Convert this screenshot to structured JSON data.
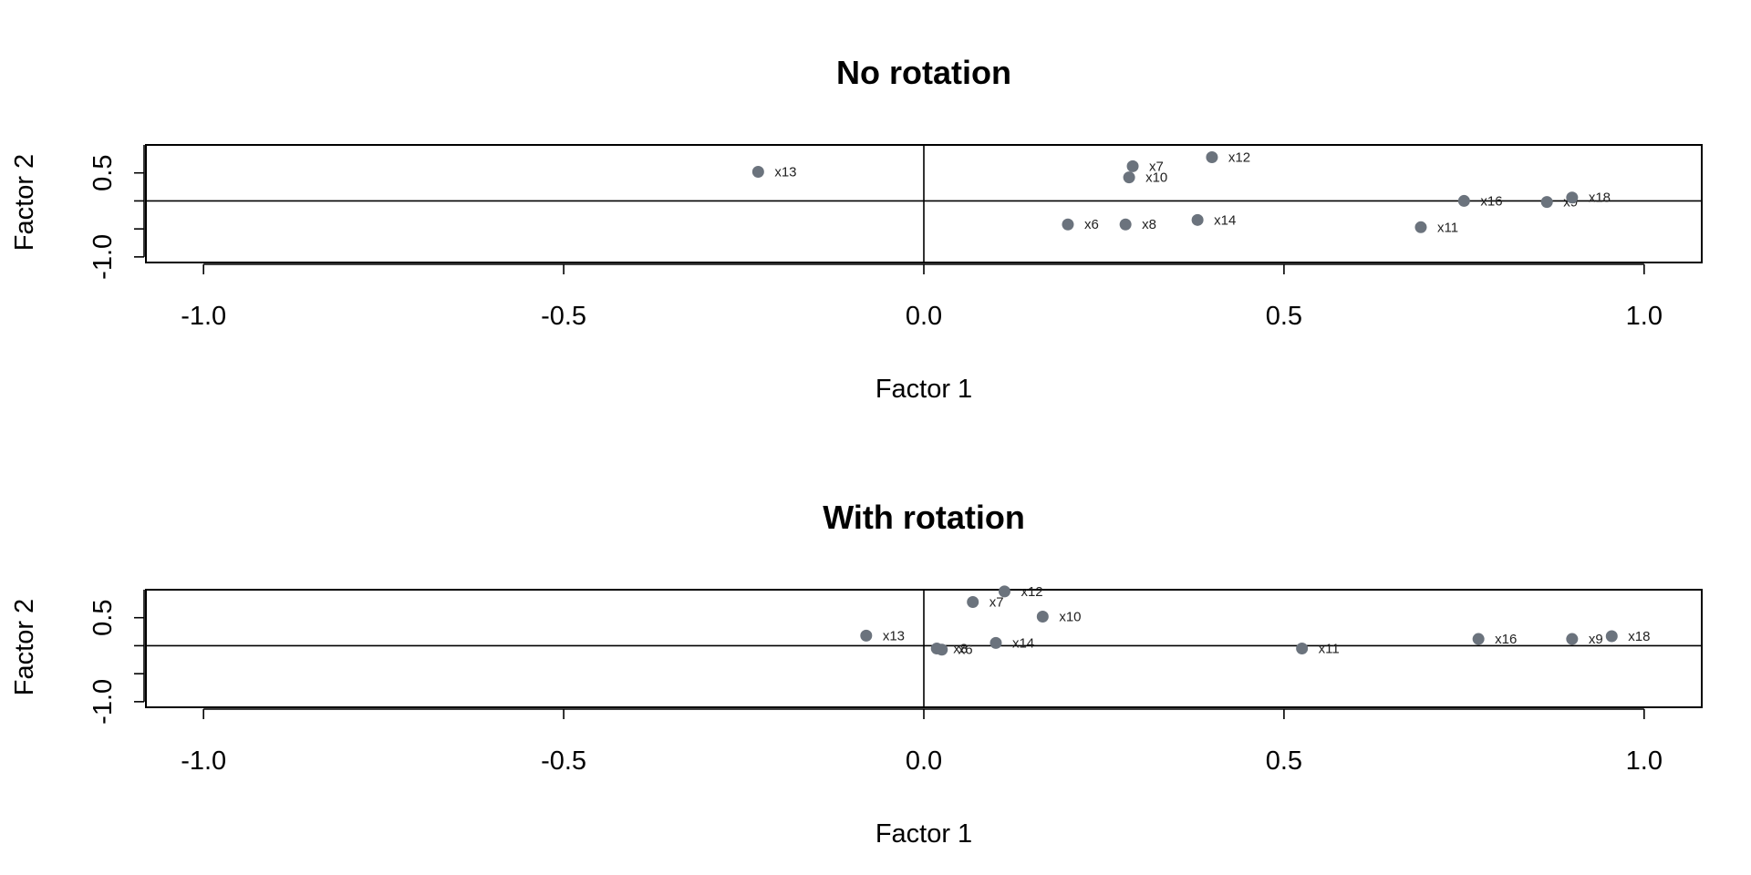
{
  "chart_data": [
    {
      "type": "scatter",
      "title": "No rotation",
      "xlabel": "Factor 1",
      "ylabel": "Factor 2",
      "xlim": [
        -1.08,
        1.08
      ],
      "ylim": [
        -1.1,
        1.0
      ],
      "xticks": [
        "-1.0",
        "-0.5",
        "0.0",
        "0.5",
        "1.0"
      ],
      "yticks": [
        "-1.0",
        "0.5"
      ],
      "point_color": "#6b737d",
      "points": [
        {
          "label": "x13",
          "x": -0.23,
          "y": 0.52
        },
        {
          "label": "x7",
          "x": 0.29,
          "y": 0.62
        },
        {
          "label": "x10",
          "x": 0.285,
          "y": 0.42
        },
        {
          "label": "x12",
          "x": 0.4,
          "y": 0.78
        },
        {
          "label": "x6",
          "x": 0.2,
          "y": -0.42
        },
        {
          "label": "x8",
          "x": 0.28,
          "y": -0.42
        },
        {
          "label": "x14",
          "x": 0.38,
          "y": -0.34
        },
        {
          "label": "x11",
          "x": 0.69,
          "y": -0.47
        },
        {
          "label": "x16",
          "x": 0.75,
          "y": 0.0
        },
        {
          "label": "x9",
          "x": 0.865,
          "y": -0.02
        },
        {
          "label": "x18",
          "x": 0.9,
          "y": 0.06
        }
      ]
    },
    {
      "type": "scatter",
      "title": "With rotation",
      "xlabel": "Factor 1",
      "ylabel": "Factor 2",
      "xlim": [
        -1.08,
        1.08
      ],
      "ylim": [
        -1.1,
        1.0
      ],
      "xticks": [
        "-1.0",
        "-0.5",
        "0.0",
        "0.5",
        "1.0"
      ],
      "yticks": [
        "-1.0",
        "0.5"
      ],
      "point_color": "#6b737d",
      "points": [
        {
          "label": "x13",
          "x": -0.08,
          "y": 0.18
        },
        {
          "label": "x8",
          "x": 0.018,
          "y": -0.05
        },
        {
          "label": "x6",
          "x": 0.025,
          "y": -0.07
        },
        {
          "label": "x14",
          "x": 0.1,
          "y": 0.05
        },
        {
          "label": "x7",
          "x": 0.068,
          "y": 0.78
        },
        {
          "label": "x12",
          "x": 0.112,
          "y": 0.97
        },
        {
          "label": "x10",
          "x": 0.165,
          "y": 0.52
        },
        {
          "label": "x11",
          "x": 0.525,
          "y": -0.05
        },
        {
          "label": "x16",
          "x": 0.77,
          "y": 0.12
        },
        {
          "label": "x9",
          "x": 0.9,
          "y": 0.12
        },
        {
          "label": "x18",
          "x": 0.955,
          "y": 0.17
        }
      ]
    }
  ]
}
